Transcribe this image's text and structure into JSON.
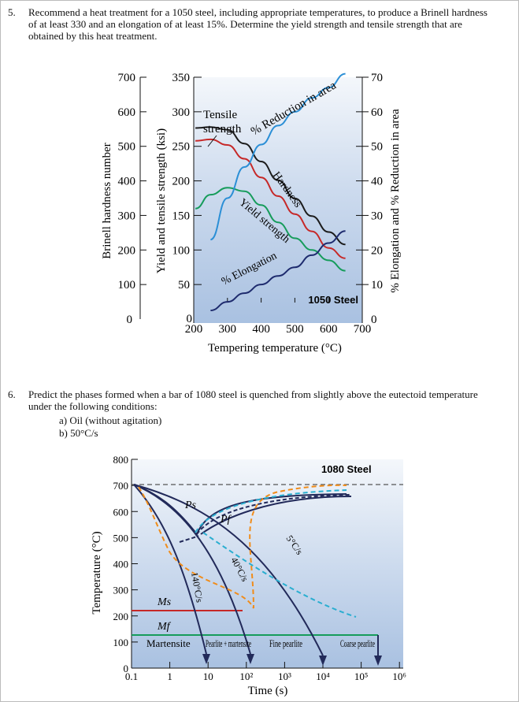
{
  "question5": {
    "number": "5.",
    "text": "Recommend a heat treatment for a 1050 steel, including appropriate temperatures, to produce a Brinell hardness of at least 330 and an elongation of at least 15%. Determine the yield strength and tensile strength that are obtained by this heat treatment."
  },
  "question6": {
    "number": "6.",
    "text": "Predict the phases formed when a bar of 1080 steel is quenched from slightly above the eutectoid temperature under the following conditions:",
    "items": [
      "a)  Oil (without agitation)",
      "b)  50°C/s"
    ]
  },
  "colors": {
    "tensile": "#c62828",
    "yield": "#169c5b",
    "hardness": "#1c1c1c",
    "reduction": "#2b8fd6",
    "elongation": "#1e2b6e",
    "panel": "#b9cde6"
  },
  "chart_data": [
    {
      "type": "line",
      "title": "1050 Steel",
      "xlabel": "Tempering temperature (°C)",
      "ylabel_left_outer": "Brinell hardness number",
      "ylabel_left_inner": "Yield and tensile strength (ksi)",
      "ylabel_right": "% Elongation and % Reduction in area",
      "x_ticks": [
        "200",
        "300",
        "400",
        "500",
        "600",
        "700"
      ],
      "xlim": [
        200,
        700
      ],
      "hb_ticks": [
        "0",
        "100",
        "200",
        "300",
        "400",
        "500",
        "600",
        "700"
      ],
      "ksi_ticks": [
        "0",
        "50",
        "100",
        "150",
        "200",
        "250",
        "300",
        "350"
      ],
      "pct_ticks": [
        "0",
        "10",
        "20",
        "30",
        "40",
        "50",
        "60",
        "70"
      ],
      "series": [
        {
          "name": "Tensile strength",
          "axis": "ksi",
          "x": [
            205,
            250,
            300,
            350,
            400,
            450,
            500,
            550,
            600,
            650
          ],
          "values": [
            258,
            260,
            252,
            232,
            205,
            178,
            152,
            127,
            103,
            88
          ]
        },
        {
          "name": "Yield strength",
          "axis": "ksi",
          "x": [
            205,
            250,
            300,
            350,
            400,
            450,
            500,
            550,
            600,
            650
          ],
          "values": [
            160,
            180,
            190,
            185,
            165,
            140,
            117,
            100,
            85,
            70
          ]
        },
        {
          "name": "Hardness",
          "axis": "hb",
          "x": [
            205,
            250,
            300,
            350,
            400,
            450,
            500,
            550,
            600,
            650
          ],
          "values": [
            553,
            556,
            548,
            508,
            456,
            402,
            349,
            298,
            252,
            216
          ]
        },
        {
          "name": "% Reduction in area",
          "axis": "pct",
          "x": [
            250,
            300,
            350,
            400,
            450,
            500,
            550,
            600,
            650
          ],
          "values": [
            23,
            35,
            44,
            50.5,
            56,
            60,
            64,
            67,
            71
          ]
        },
        {
          "name": "% Elongation",
          "axis": "pct",
          "x": [
            250,
            300,
            350,
            400,
            450,
            500,
            550,
            600,
            650
          ],
          "values": [
            2.5,
            5,
            7.5,
            10,
            12.5,
            15,
            18.5,
            22,
            25.5
          ]
        }
      ],
      "labels": {
        "tensile": "Tensile",
        "strength": "strength",
        "reduction": "% Reduction in area",
        "hardness": "Hardness",
        "yield": "Yield strength",
        "elongation": "% Elongation",
        "steel": "1050 Steel"
      }
    },
    {
      "type": "line",
      "title": "1080 Steel",
      "xlabel": "Time (s)",
      "ylabel": "Temperature (°C)",
      "x_ticks": [
        "0.1",
        "1",
        "10",
        "10²",
        "10³",
        "10⁴",
        "10⁵",
        "10⁶"
      ],
      "y_ticks": [
        "0",
        "100",
        "200",
        "300",
        "400",
        "500",
        "600",
        "700",
        "800"
      ],
      "ylim": [
        0,
        800
      ],
      "lines": {
        "Ms": 220,
        "Mf": 120,
        "eutectoid": 727
      },
      "cooling_rates": [
        "140°C/s",
        "40°C/s",
        "5°C/s"
      ],
      "labels": {
        "Ps": "Ps",
        "Pf": "Pf",
        "Ms": "Ms",
        "Mf": "Mf"
      },
      "regions": [
        "Martensite",
        "Pearlite + martensite",
        "Fine pearlite",
        "Coarse pearlite"
      ]
    }
  ]
}
